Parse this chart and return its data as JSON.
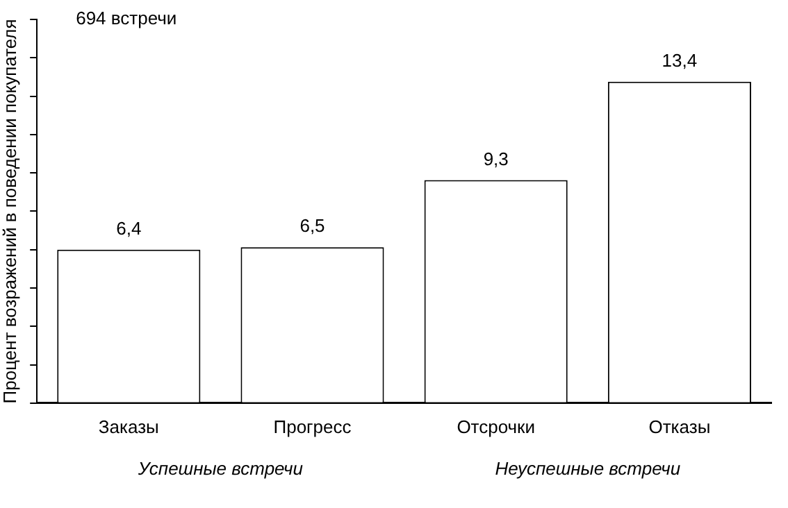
{
  "chart_data": {
    "type": "bar",
    "title": "694 встречи",
    "ylabel": "Процент возражений в поведении покупателя",
    "categories": [
      "Заказы",
      "Прогресс",
      "Отсрочки",
      "Отказы"
    ],
    "values": [
      6.4,
      6.5,
      9.3,
      13.4
    ],
    "value_labels": [
      "6,4",
      "6,5",
      "9,3",
      "13,4"
    ],
    "color": "#ffffff",
    "ylim": [
      0,
      16
    ],
    "yticks": [
      {
        "value": 0,
        "label": null
      },
      {
        "value": 1.6,
        "label": null
      },
      {
        "value": 3.2,
        "label": null
      },
      {
        "value": 4.8,
        "label": null
      },
      {
        "value": 6.4,
        "label": null
      },
      {
        "value": 8,
        "label": null
      },
      {
        "value": 9.6,
        "label": null
      },
      {
        "value": 11.2,
        "label": null
      },
      {
        "value": 12.8,
        "label": null
      },
      {
        "value": 14.4,
        "label": null
      },
      {
        "value": 16,
        "label": null
      }
    ],
    "annotations": [
      "Успешные встречи",
      "Неуспешные встречи"
    ],
    "grid": false,
    "legend": false
  }
}
